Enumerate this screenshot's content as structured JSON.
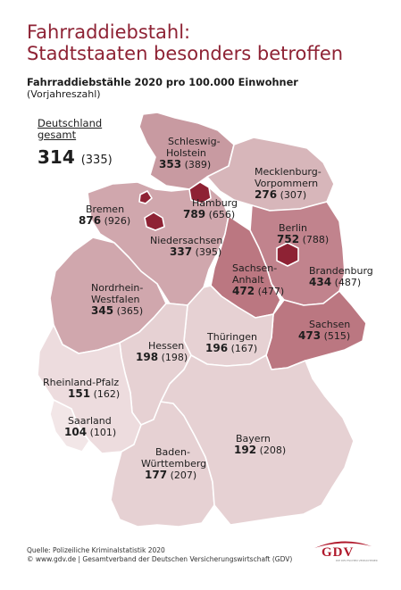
{
  "title_line1": "Fahrraddiebstahl:",
  "title_line2": "Stadtstaaten besonders betroffen",
  "subtitle": "Fahrraddiebstähle 2020 pro 100.000 Einwohner",
  "subnote": "(Vorjahreszahl)",
  "total": {
    "label1": "Deutschland",
    "label2": "gesamt",
    "value": "314",
    "prev": "(335)"
  },
  "states": {
    "sh": {
      "name1": "Schleswig-",
      "name2": "Holstein",
      "value": "353",
      "prev": "(389)",
      "color": "#c89aa1"
    },
    "hh": {
      "name1": "Hamburg",
      "value": "789",
      "prev": "(656)",
      "color": "#8e2234"
    },
    "mv": {
      "name1": "Mecklenburg-",
      "name2": "Vorpommern",
      "value": "276",
      "prev": "(307)",
      "color": "#d7b6ba"
    },
    "hb": {
      "name1": "Bremen",
      "value": "876",
      "prev": "(926)",
      "color": "#8e2234"
    },
    "ni": {
      "name1": "Niedersachsen",
      "value": "337",
      "prev": "(395)",
      "color": "#d0a7ad"
    },
    "be": {
      "name1": "Berlin",
      "value": "752",
      "prev": "(788)",
      "color": "#8e2234"
    },
    "bb": {
      "name1": "Brandenburg",
      "value": "434",
      "prev": "(487)",
      "color": "#c1838d"
    },
    "st": {
      "name1": "Sachsen-",
      "name2": "Anhalt",
      "value": "472",
      "prev": "(477)",
      "color": "#bb7781"
    },
    "nw": {
      "name1": "Nordrhein-",
      "name2": "Westfalen",
      "value": "345",
      "prev": "(365)",
      "color": "#d0a7ad"
    },
    "sn": {
      "name1": "Sachsen",
      "value": "473",
      "prev": "(515)",
      "color": "#bb7781"
    },
    "he": {
      "name1": "Hessen",
      "value": "198",
      "prev": "(198)",
      "color": "#e6d1d3"
    },
    "th": {
      "name1": "Thüringen",
      "value": "196",
      "prev": "(167)",
      "color": "#e6d1d3"
    },
    "rp": {
      "name1": "Rheinland-Pfalz",
      "value": "151",
      "prev": "(162)",
      "color": "#eddcde"
    },
    "sl": {
      "name1": "Saarland",
      "value": "104",
      "prev": "(101)",
      "color": "#f2e6e7"
    },
    "bw": {
      "name1": "Baden-",
      "name2": "Württemberg",
      "value": "177",
      "prev": "(207)",
      "color": "#e6d1d3"
    },
    "by": {
      "name1": "Bayern",
      "value": "192",
      "prev": "(208)",
      "color": "#e6d1d3"
    }
  },
  "footer1": "Quelle: Polizeiliche Kriminalstatistik 2020",
  "footer2": "© www.gdv.de | Gesamtverband der Deutschen Versicherungswirtschaft (GDV)",
  "logo": "GDV",
  "logo_sub": "DIE DEUTSCHEN VERSICHERER"
}
